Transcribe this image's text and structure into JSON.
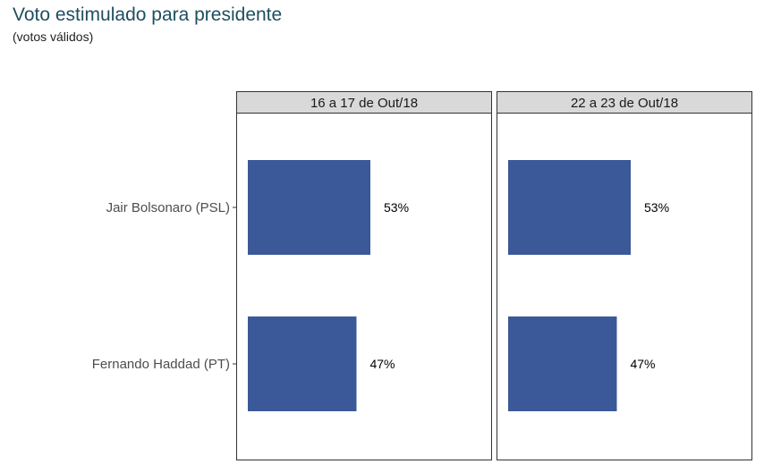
{
  "title": "Voto estimulado para presidente",
  "subtitle": "(votos válidos)",
  "chart_data": {
    "type": "bar",
    "orientation": "horizontal",
    "title": "Voto estimulado para presidente",
    "subtitle": "(votos válidos)",
    "xlabel": "",
    "ylabel": "",
    "xlim": [
      0,
      100
    ],
    "grid": false,
    "categories": [
      "Jair Bolsonaro (PSL)",
      "Fernando Haddad (PT)"
    ],
    "panels": [
      {
        "name": "16 a 17 de Out/18",
        "values": [
          53,
          47
        ],
        "labels": [
          "53%",
          "47%"
        ]
      },
      {
        "name": "22 a 23 de Out/18",
        "values": [
          53,
          47
        ],
        "labels": [
          "53%",
          "47%"
        ]
      }
    ],
    "bar_color": "#3b5998"
  }
}
